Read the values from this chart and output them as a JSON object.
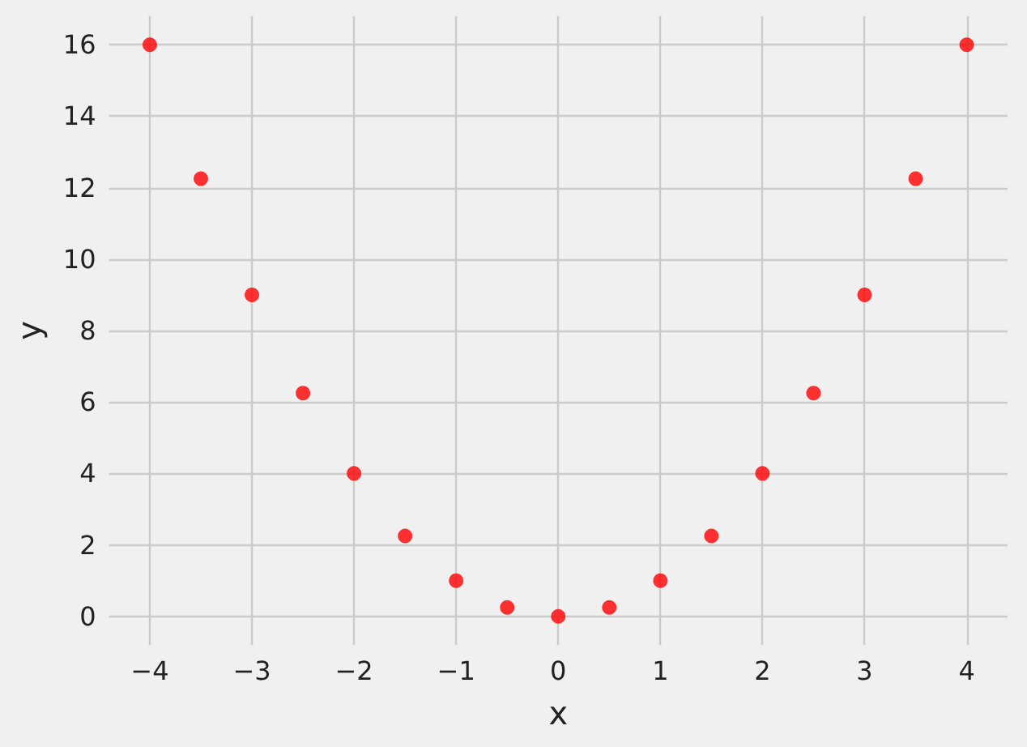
{
  "chart_data": {
    "type": "scatter",
    "xlabel": "x",
    "ylabel": "y",
    "x": [
      -4,
      -3.5,
      -3,
      -2.5,
      -2,
      -1.5,
      -1,
      -0.5,
      0,
      0.5,
      1,
      1.5,
      2,
      2.5,
      3,
      3.5,
      4
    ],
    "series": [
      {
        "color": "#ff0000",
        "values": [
          16,
          12.25,
          9,
          6.25,
          4,
          2.25,
          1,
          0.25,
          0,
          0.25,
          1,
          2.25,
          4,
          6.25,
          9,
          12.25,
          16
        ]
      }
    ],
    "xlim": [
      -4.4,
      4.4
    ],
    "ylim": [
      -0.8,
      16.8
    ],
    "xticks": [
      {
        "value": -4,
        "label": "−4"
      },
      {
        "value": -3,
        "label": "−3"
      },
      {
        "value": -2,
        "label": "−2"
      },
      {
        "value": -1,
        "label": "−1"
      },
      0,
      1,
      2,
      3,
      4
    ],
    "yticks": [
      0,
      2,
      4,
      6,
      8,
      10,
      12,
      14,
      16
    ],
    "grid": true,
    "marker": "circle"
  }
}
